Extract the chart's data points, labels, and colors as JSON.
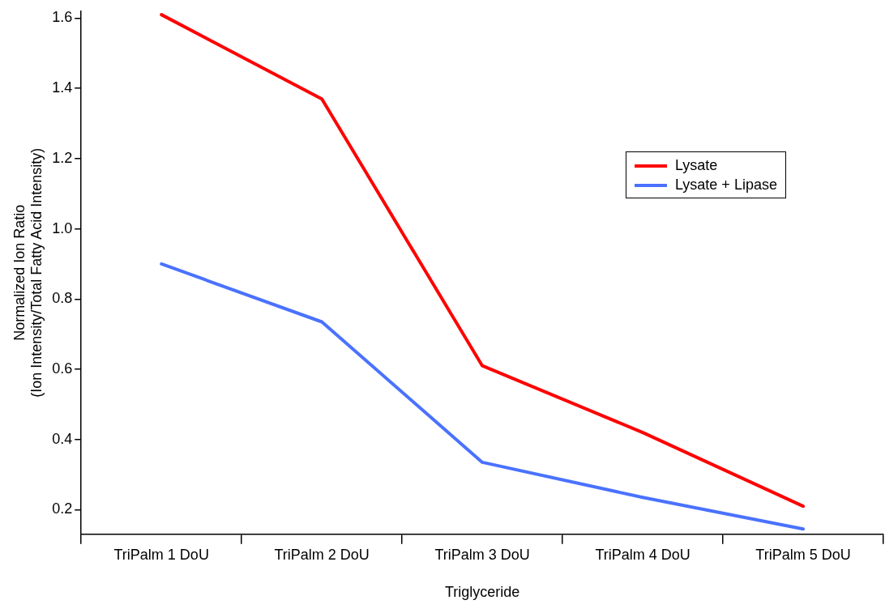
{
  "chart_data": {
    "type": "line",
    "xlabel": "Triglyceride",
    "ylabel": "Normalized Ion Ratio\n(Ion Intensity/Total Fatty Acid Intensity)",
    "categories": [
      "TriPalm 1 DoU",
      "TriPalm 2 DoU",
      "TriPalm 3 DoU",
      "TriPalm 4 DoU",
      "TriPalm 5 DoU"
    ],
    "series": [
      {
        "name": "Lysate",
        "color": "#ff0000",
        "values": [
          1.61,
          1.37,
          0.61,
          0.42,
          0.21
        ]
      },
      {
        "name": "Lysate + Lipase",
        "color": "#4a72ff",
        "values": [
          0.9,
          0.735,
          0.335,
          0.235,
          0.145
        ]
      }
    ],
    "ylim": [
      0.13,
      1.62
    ],
    "yticks": [
      0.2,
      0.4,
      0.6,
      0.8,
      {
        "value": 1,
        "label": "1.0"
      },
      1.2,
      1.4,
      1.6
    ],
    "grid": false,
    "legend": "right",
    "marker": "none",
    "line_style": "solid"
  }
}
